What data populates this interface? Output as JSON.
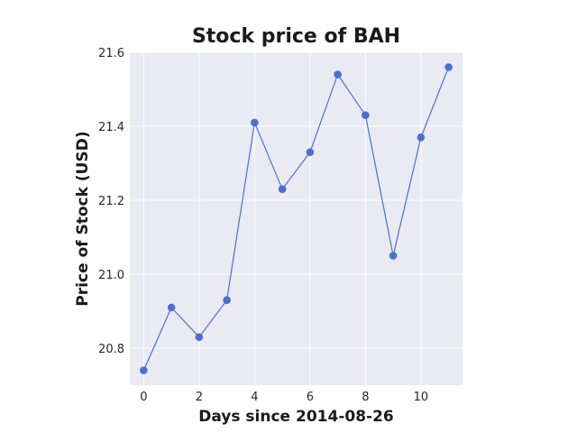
{
  "chart_data": {
    "type": "line",
    "title": "Stock price of BAH",
    "xlabel": "Days since 2014-08-26",
    "ylabel": "Price of Stock (USD)",
    "xlim": [
      -0.5,
      11.5
    ],
    "ylim": [
      20.7,
      21.6
    ],
    "xticks": [
      0,
      2,
      4,
      6,
      8,
      10
    ],
    "yticks": [
      20.8,
      21.0,
      21.2,
      21.4,
      21.6
    ],
    "ytick_labels": [
      "20.8",
      "21.0",
      "21.2",
      "21.4",
      "21.6"
    ],
    "grid": true,
    "series": [
      {
        "name": "BAH",
        "color": "#4c6fd1",
        "x": [
          0,
          1,
          2,
          3,
          4,
          5,
          6,
          7,
          8,
          9,
          10,
          11
        ],
        "values": [
          20.74,
          20.91,
          20.83,
          20.93,
          21.41,
          21.23,
          21.33,
          21.54,
          21.43,
          21.05,
          21.37,
          21.56
        ]
      }
    ],
    "background": "#eaeaf2"
  }
}
